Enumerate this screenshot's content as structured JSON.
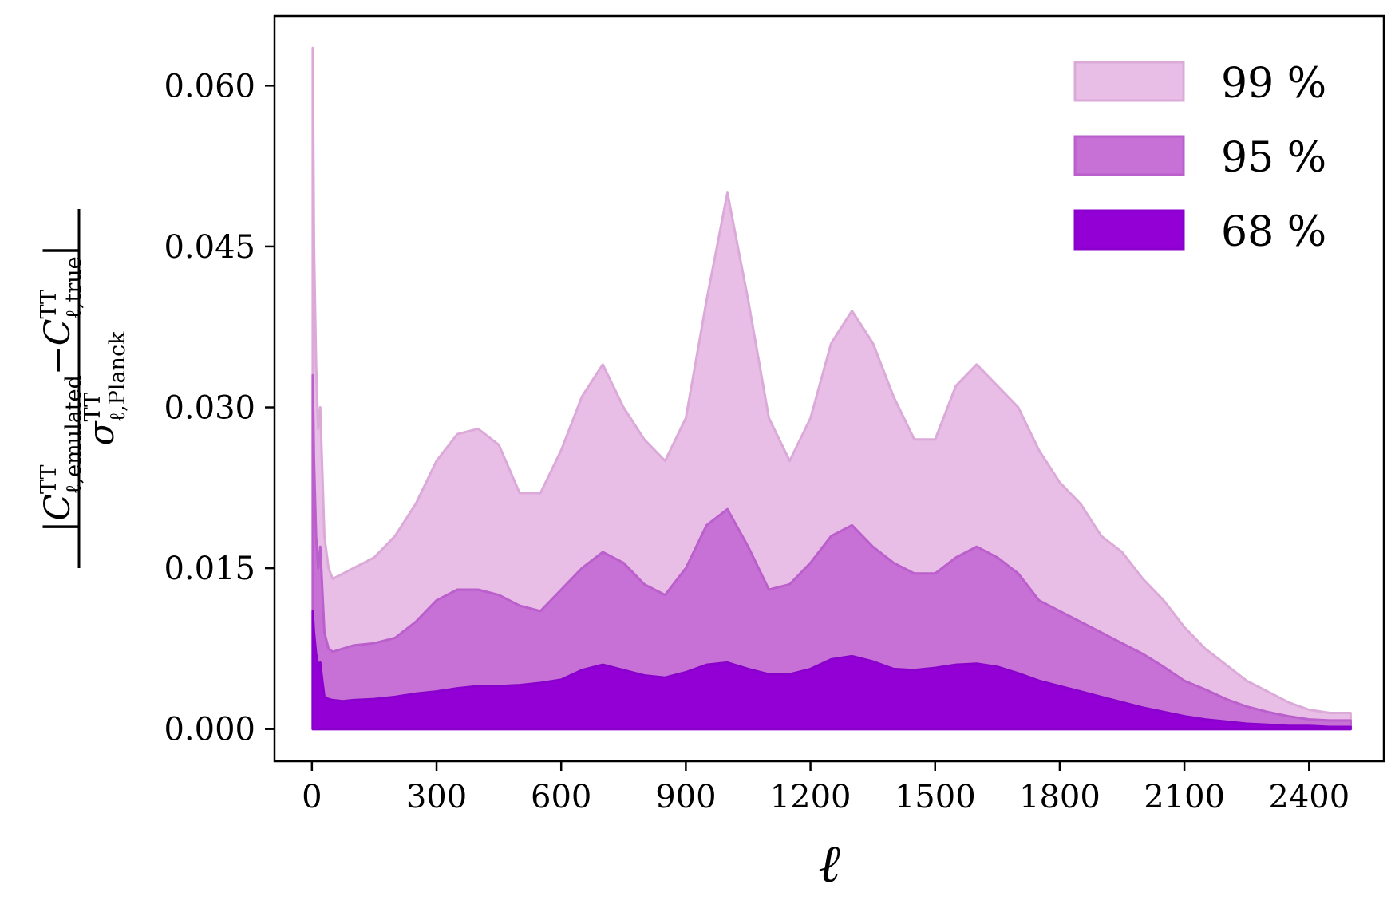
{
  "chart_data": {
    "type": "area",
    "xlabel": "ℓ",
    "ylabel": {
      "numerator_left": "C",
      "numerator_left_sup": "TT",
      "numerator_left_sub": "ℓ,emulated",
      "minus": "−",
      "numerator_right": "C",
      "numerator_right_sup": "TT",
      "numerator_right_sub": "ℓ,true",
      "denominator": "σ",
      "denominator_sup": "TT",
      "denominator_sub": "ℓ,Planck"
    },
    "xlim": [
      -90,
      2580
    ],
    "ylim": [
      -0.003,
      0.0665
    ],
    "xticks": [
      0,
      300,
      600,
      900,
      1200,
      1500,
      1800,
      2100,
      2400
    ],
    "xtick_labels": [
      "0",
      "300",
      "600",
      "900",
      "1200",
      "1500",
      "1800",
      "2100",
      "2400"
    ],
    "yticks": [
      0.0,
      0.015,
      0.03,
      0.045,
      0.06
    ],
    "ytick_labels": [
      "0.000",
      "0.015",
      "0.030",
      "0.045",
      "0.060"
    ],
    "grid": false,
    "legend_position": "top-right",
    "x": [
      2,
      5,
      10,
      15,
      20,
      25,
      30,
      40,
      50,
      75,
      100,
      150,
      200,
      250,
      300,
      350,
      400,
      450,
      500,
      550,
      600,
      650,
      700,
      750,
      800,
      850,
      900,
      950,
      1000,
      1050,
      1100,
      1150,
      1200,
      1250,
      1300,
      1350,
      1400,
      1450,
      1500,
      1550,
      1600,
      1650,
      1700,
      1750,
      1800,
      1850,
      1900,
      1950,
      2000,
      2050,
      2100,
      2150,
      2200,
      2250,
      2300,
      2350,
      2400,
      2450,
      2500
    ],
    "series": [
      {
        "name": "99 %",
        "color": "#e8bde6",
        "edge": "#dcaad9",
        "values": [
          0.0635,
          0.045,
          0.034,
          0.028,
          0.03,
          0.024,
          0.018,
          0.015,
          0.014,
          0.0145,
          0.015,
          0.016,
          0.018,
          0.021,
          0.025,
          0.0275,
          0.028,
          0.0265,
          0.022,
          0.022,
          0.026,
          0.031,
          0.034,
          0.03,
          0.027,
          0.025,
          0.029,
          0.04,
          0.05,
          0.04,
          0.029,
          0.025,
          0.029,
          0.036,
          0.039,
          0.036,
          0.031,
          0.027,
          0.027,
          0.032,
          0.034,
          0.032,
          0.03,
          0.026,
          0.023,
          0.021,
          0.018,
          0.0165,
          0.014,
          0.012,
          0.0095,
          0.0075,
          0.006,
          0.0045,
          0.0035,
          0.0025,
          0.0018,
          0.0015,
          0.0015
        ]
      },
      {
        "name": "95 %",
        "color": "#c771d6",
        "edge": "#ba5fcc",
        "values": [
          0.033,
          0.025,
          0.018,
          0.015,
          0.017,
          0.013,
          0.009,
          0.0075,
          0.0072,
          0.0075,
          0.0078,
          0.008,
          0.0085,
          0.01,
          0.012,
          0.013,
          0.013,
          0.0125,
          0.0115,
          0.011,
          0.013,
          0.015,
          0.0165,
          0.0155,
          0.0135,
          0.0125,
          0.015,
          0.019,
          0.0205,
          0.017,
          0.013,
          0.0135,
          0.0155,
          0.018,
          0.019,
          0.017,
          0.0155,
          0.0145,
          0.0145,
          0.016,
          0.017,
          0.016,
          0.0145,
          0.012,
          0.011,
          0.01,
          0.009,
          0.008,
          0.007,
          0.0058,
          0.0045,
          0.0037,
          0.0028,
          0.0021,
          0.0016,
          0.0012,
          0.0009,
          0.0008,
          0.0008
        ]
      },
      {
        "name": "68 %",
        "color": "#9200d6",
        "edge": "#8a00cc",
        "values": [
          0.011,
          0.009,
          0.007,
          0.006,
          0.0062,
          0.0045,
          0.003,
          0.0028,
          0.0027,
          0.0026,
          0.0027,
          0.0028,
          0.003,
          0.0033,
          0.0035,
          0.0038,
          0.004,
          0.004,
          0.0041,
          0.0043,
          0.0046,
          0.0055,
          0.006,
          0.0055,
          0.005,
          0.0048,
          0.0053,
          0.006,
          0.0062,
          0.0056,
          0.0051,
          0.0051,
          0.0056,
          0.0065,
          0.0068,
          0.0063,
          0.0056,
          0.0055,
          0.0057,
          0.006,
          0.0061,
          0.0058,
          0.0052,
          0.0045,
          0.004,
          0.0035,
          0.003,
          0.0025,
          0.002,
          0.0016,
          0.0012,
          0.0009,
          0.0007,
          0.0005,
          0.0004,
          0.0003,
          0.0003,
          0.0002,
          0.0002
        ]
      }
    ]
  }
}
